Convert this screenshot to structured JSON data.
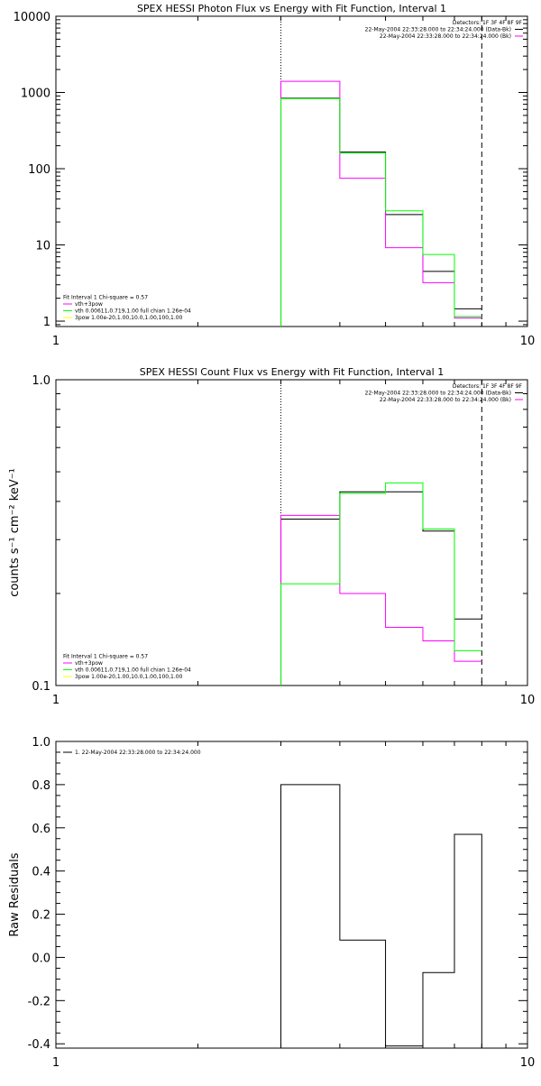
{
  "colors": {
    "background": "#ffffff",
    "axes": "#000000",
    "black": "#000000",
    "magenta": "#ff00ff",
    "green": "#00ff00",
    "yellow": "#ffff00"
  },
  "chart_data": [
    {
      "type": "line",
      "step": true,
      "title": "SPEX HESSI Photon Flux vs Energy with Fit Function, Interval 1",
      "xlabel": "",
      "ylabel": "",
      "xscale": "log",
      "yscale": "log",
      "xlim": [
        1,
        10
      ],
      "ylim": [
        0.85,
        10000
      ],
      "xticks": [
        1,
        10
      ],
      "xtick_labels": [
        "1",
        "10"
      ],
      "yticks": [
        1,
        10,
        100,
        1000,
        10000
      ],
      "ytick_labels": [
        "1",
        "10",
        "100",
        "1000",
        "10000"
      ],
      "vlines": [
        {
          "x": 3,
          "style": "dotted"
        },
        {
          "x": 8,
          "style": "dashed"
        }
      ],
      "bin_edges": [
        3,
        4,
        5,
        6,
        7,
        8
      ],
      "series": [
        {
          "color": "black",
          "values": [
            840,
            165,
            25,
            4.5,
            1.45
          ]
        },
        {
          "color": "magenta",
          "values": [
            1400,
            75,
            9.2,
            3.2,
            1.1
          ]
        },
        {
          "color": "green",
          "values": [
            830,
            160,
            28,
            7.5,
            1.15
          ]
        }
      ],
      "annotations_right": [
        {
          "text": "Detectors: 1F 3F 4F 8F 9F",
          "color": ""
        },
        {
          "text": "22-May-2004 22:33:28.000 to 22:34:24.000 (Data-Bk)",
          "color": "black"
        },
        {
          "text": "22-May-2004 22:33:28.000 to 22:34:24.000 (Bk)",
          "color": "magenta"
        }
      ],
      "legend": {
        "placement": "bottom-left",
        "header": "Fit Interval 1    Chi-square = 0.57",
        "entries": [
          {
            "text": "vth+3pow",
            "color": "magenta"
          },
          {
            "text": "vth 0.00611,0.719,1.00   full chian 1.26e-04",
            "color": "green"
          },
          {
            "text": "3pow 1.00e-20,1.00,10.0,1.00,100,1.00",
            "color": "yellow"
          }
        ]
      }
    },
    {
      "type": "line",
      "step": true,
      "title": "SPEX HESSI Count Flux vs Energy with Fit Function, Interval 1",
      "xlabel": "",
      "ylabel": "counts s⁻¹ cm⁻² keV⁻¹",
      "xscale": "log",
      "yscale": "log",
      "xlim": [
        1,
        10
      ],
      "ylim": [
        0.1,
        1.0
      ],
      "xticks": [
        1,
        10
      ],
      "xtick_labels": [
        "1",
        "10"
      ],
      "yticks": [
        0.1,
        1.0
      ],
      "ytick_labels": [
        "0.1",
        "1.0"
      ],
      "vlines": [
        {
          "x": 3,
          "style": "dotted"
        },
        {
          "x": 8,
          "style": "dashed"
        }
      ],
      "bin_edges": [
        3,
        4,
        5,
        6,
        7,
        8
      ],
      "series": [
        {
          "color": "black",
          "values": [
            0.35,
            0.43,
            0.43,
            0.32,
            0.165
          ]
        },
        {
          "color": "magenta",
          "values": [
            0.36,
            0.2,
            0.155,
            0.14,
            0.12
          ]
        },
        {
          "color": "green",
          "values": [
            0.215,
            0.425,
            0.46,
            0.325,
            0.13
          ]
        }
      ],
      "annotations_right": [
        {
          "text": "Detectors: 1F 3F 4F 8F 9F",
          "color": ""
        },
        {
          "text": "22-May-2004 22:33:28.000 to 22:34:24.000 (Data-Bk)",
          "color": "black"
        },
        {
          "text": "22-May-2004 22:33:28.000 to 22:34:24.000 (Bk)",
          "color": "magenta"
        }
      ],
      "legend": {
        "placement": "bottom-left",
        "header": "Fit Interval 1    Chi-square = 0.57",
        "entries": [
          {
            "text": "vth+3pow",
            "color": "magenta"
          },
          {
            "text": "vth 0.00611,0.719,1.00   full chian 1.26e-04",
            "color": "green"
          },
          {
            "text": "3pow 1.00e-20,1.00,10.0,1.00,100,1.00",
            "color": "yellow"
          }
        ]
      }
    },
    {
      "type": "line",
      "step": true,
      "title": "",
      "xlabel": "",
      "ylabel": "Raw Residuals",
      "xscale": "log",
      "yscale": "linear",
      "xlim": [
        1,
        10
      ],
      "ylim": [
        -0.42,
        1.0
      ],
      "xticks": [
        1,
        10
      ],
      "xtick_labels": [
        "1",
        "10"
      ],
      "yticks": [
        -0.4,
        -0.2,
        0.0,
        0.2,
        0.4,
        0.6,
        0.8,
        1.0
      ],
      "ytick_labels": [
        "-0.4",
        "-0.2",
        "0.0",
        "0.2",
        "0.4",
        "0.6",
        "0.8",
        "1.0"
      ],
      "vlines": [],
      "bin_edges": [
        3,
        4,
        5,
        6,
        7,
        8
      ],
      "series": [
        {
          "color": "black",
          "values": [
            0.8,
            0.08,
            -0.41,
            -0.07,
            0.57
          ]
        }
      ],
      "legend": {
        "placement": "top-left",
        "header": "",
        "entries": [
          {
            "text": "1. 22-May-2004 22:33:28.000 to 22:34:24.000",
            "color": "black"
          }
        ]
      }
    }
  ]
}
